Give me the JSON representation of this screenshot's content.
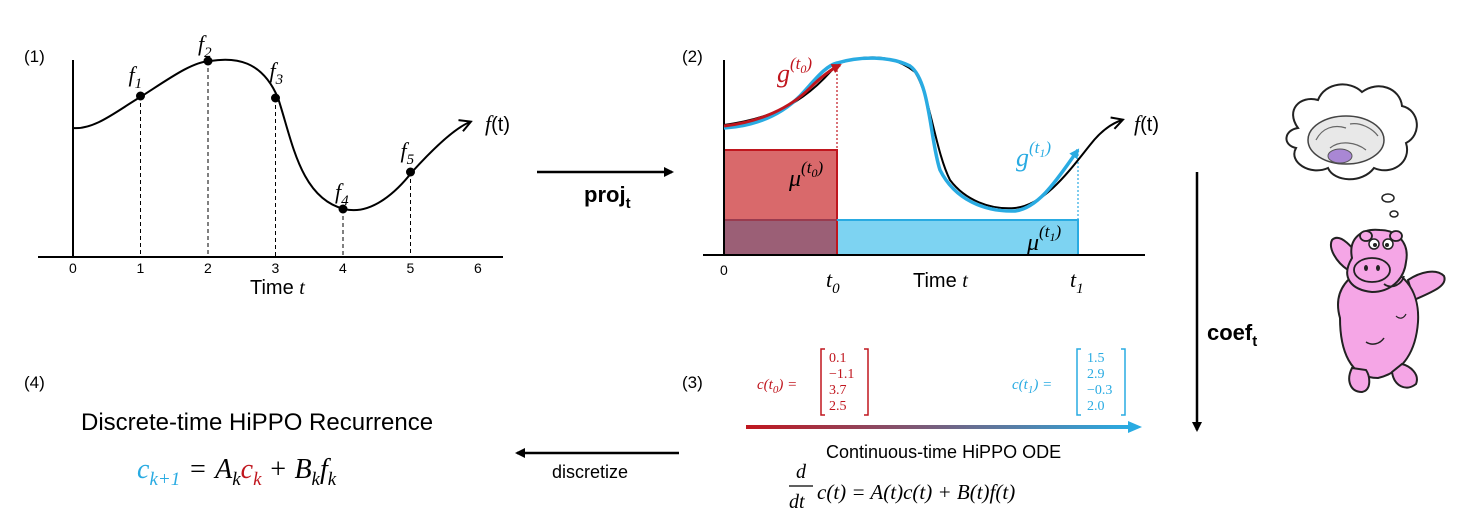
{
  "panel1": {
    "label": "(1)",
    "curve_label": "f(t)",
    "curve_label_f": "f",
    "curve_label_t": "(t)",
    "xlabel": "Time",
    "xlabel_var": "t",
    "ticks": [
      "0",
      "1",
      "2",
      "3",
      "4",
      "5",
      "6"
    ],
    "samples": [
      {
        "name": "f",
        "sub": "1",
        "t": 1
      },
      {
        "name": "f",
        "sub": "2",
        "t": 2
      },
      {
        "name": "f",
        "sub": "3",
        "t": 3
      },
      {
        "name": "f",
        "sub": "4",
        "t": 4
      },
      {
        "name": "f",
        "sub": "5",
        "t": 5
      }
    ]
  },
  "arrow_proj": {
    "label": "proj",
    "sub": "t"
  },
  "panel2": {
    "label": "(2)",
    "curve_label_f": "f",
    "curve_label_t": "(t)",
    "g0": {
      "base": "g",
      "sup": "(t",
      "supsub": "0",
      "close": ")"
    },
    "g1": {
      "base": "g",
      "sup": "(t",
      "supsub": "1",
      "close": ")"
    },
    "mu0": {
      "base": "μ",
      "sup": "(t",
      "supsub": "0",
      "close": ")"
    },
    "mu1": {
      "base": "μ",
      "sup": "(t",
      "supsub": "1",
      "close": ")"
    },
    "tick0": "0",
    "t0": {
      "base": "t",
      "sub": "0"
    },
    "t1": {
      "base": "t",
      "sub": "1"
    },
    "xlabel": "Time",
    "xlabel_var": "t"
  },
  "arrow_coef": {
    "label": "coef",
    "sub": "t"
  },
  "panel3": {
    "label": "(3)",
    "c0": {
      "lhs": "c(t",
      "lhs_sub": "0",
      "lhs_close": ") =",
      "values": [
        "0.1",
        "−1.1",
        "3.7",
        "2.5"
      ]
    },
    "c1": {
      "lhs": "c(t",
      "lhs_sub": "1",
      "lhs_close": ") =",
      "values": [
        "1.5",
        "2.9",
        "−0.3",
        "2.0"
      ]
    },
    "ode_title": "Continuous-time HiPPO ODE",
    "ode_d": "d",
    "ode_dt": "dt",
    "ode_rhs": "c(t) = A(t)c(t) + B(t)f(t)"
  },
  "arrow_discretize": {
    "label": "discretize"
  },
  "panel4": {
    "label": "(4)",
    "title": "Discrete-time HiPPO Recurrence",
    "eq": {
      "c1": "c",
      "c1_sub": "k+1",
      "eq": "=",
      "A": "A",
      "A_sub": "k",
      "c2": "c",
      "c2_sub": "k",
      "plus": "+",
      "B": "B",
      "B_sub": "k",
      "f": "f",
      "f_sub": "k"
    }
  },
  "colors": {
    "red": "#c0161e",
    "blue": "#29abe2",
    "red_fill": "#d9696b",
    "blue_fill": "#7dd3f2",
    "overlap_fill": "#9b5f76",
    "mascot_pink": "#f5a6e6",
    "mascot_outline": "#222222"
  },
  "mascot": {
    "icon": "hippo-mascot-icon",
    "thought_icon": "brain-thought-bubble-icon"
  }
}
